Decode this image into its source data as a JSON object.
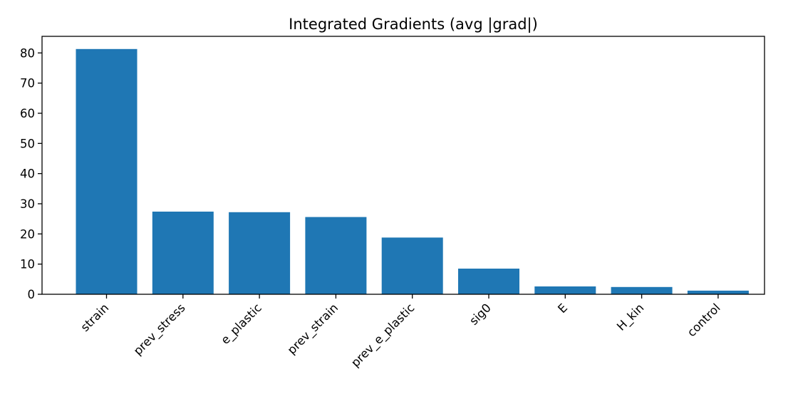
{
  "chart_data": {
    "type": "bar",
    "title": "Integrated Gradients (avg |grad|)",
    "xlabel": "",
    "ylabel": "",
    "categories": [
      "strain",
      "prev_stress",
      "e_plastic",
      "prev_strain",
      "prev_e_plastic",
      "sig0",
      "E",
      "H_kin",
      "control"
    ],
    "values": [
      81.3,
      27.4,
      27.2,
      25.6,
      18.8,
      8.5,
      2.6,
      2.4,
      1.2
    ],
    "ylim": [
      0,
      85.5
    ],
    "yticks": [
      0,
      10,
      20,
      30,
      40,
      50,
      60,
      70,
      80
    ],
    "color": "#1f77b4",
    "grid": false,
    "legend": false
  }
}
